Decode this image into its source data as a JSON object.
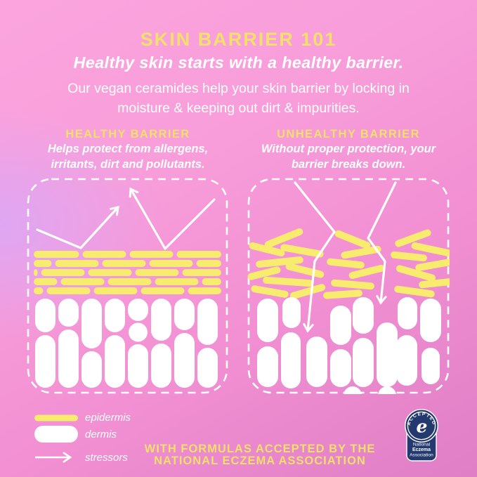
{
  "title": "SKIN BARRIER 101",
  "subtitle": "Healthy skin starts with a healthy barrier.",
  "intro": "Our vegan ceramides help your skin barrier by locking in moisture & keeping out dirt & impurities.",
  "columns": {
    "healthy": {
      "heading": "HEALTHY BARRIER",
      "description": "Helps protect from allergens, irritants, dirt and pollutants."
    },
    "unhealthy": {
      "heading": "UNHEALTHY BARRIER",
      "description": "Without proper protection, your barrier breaks down."
    }
  },
  "legend": {
    "items": [
      {
        "symbol": "epidermis-pill",
        "label": "epidermis"
      },
      {
        "symbol": "dermis-pill",
        "label": "dermis"
      },
      {
        "symbol": "stressor-arrow",
        "label": "stressors"
      }
    ]
  },
  "footer": {
    "line1": "WITH FORMULAS ACCEPTED BY THE",
    "line2": "NATIONAL ECZEMA ASSOCIATION"
  },
  "seal": {
    "arc_text": "ACCEPTED",
    "letter": "e",
    "org_line1": "National",
    "org_line2": "Eczema",
    "org_line3": "Association"
  },
  "colors": {
    "heading_yellow": "#f3e06c",
    "pill_yellow": "#f8ec6e",
    "text_white": "#ffffff",
    "seal_navy": "#24396e",
    "bg_pink_top": "#fba5de",
    "bg_lilac": "#d9a8f7",
    "bg_pink_deep": "#e07ec6"
  }
}
